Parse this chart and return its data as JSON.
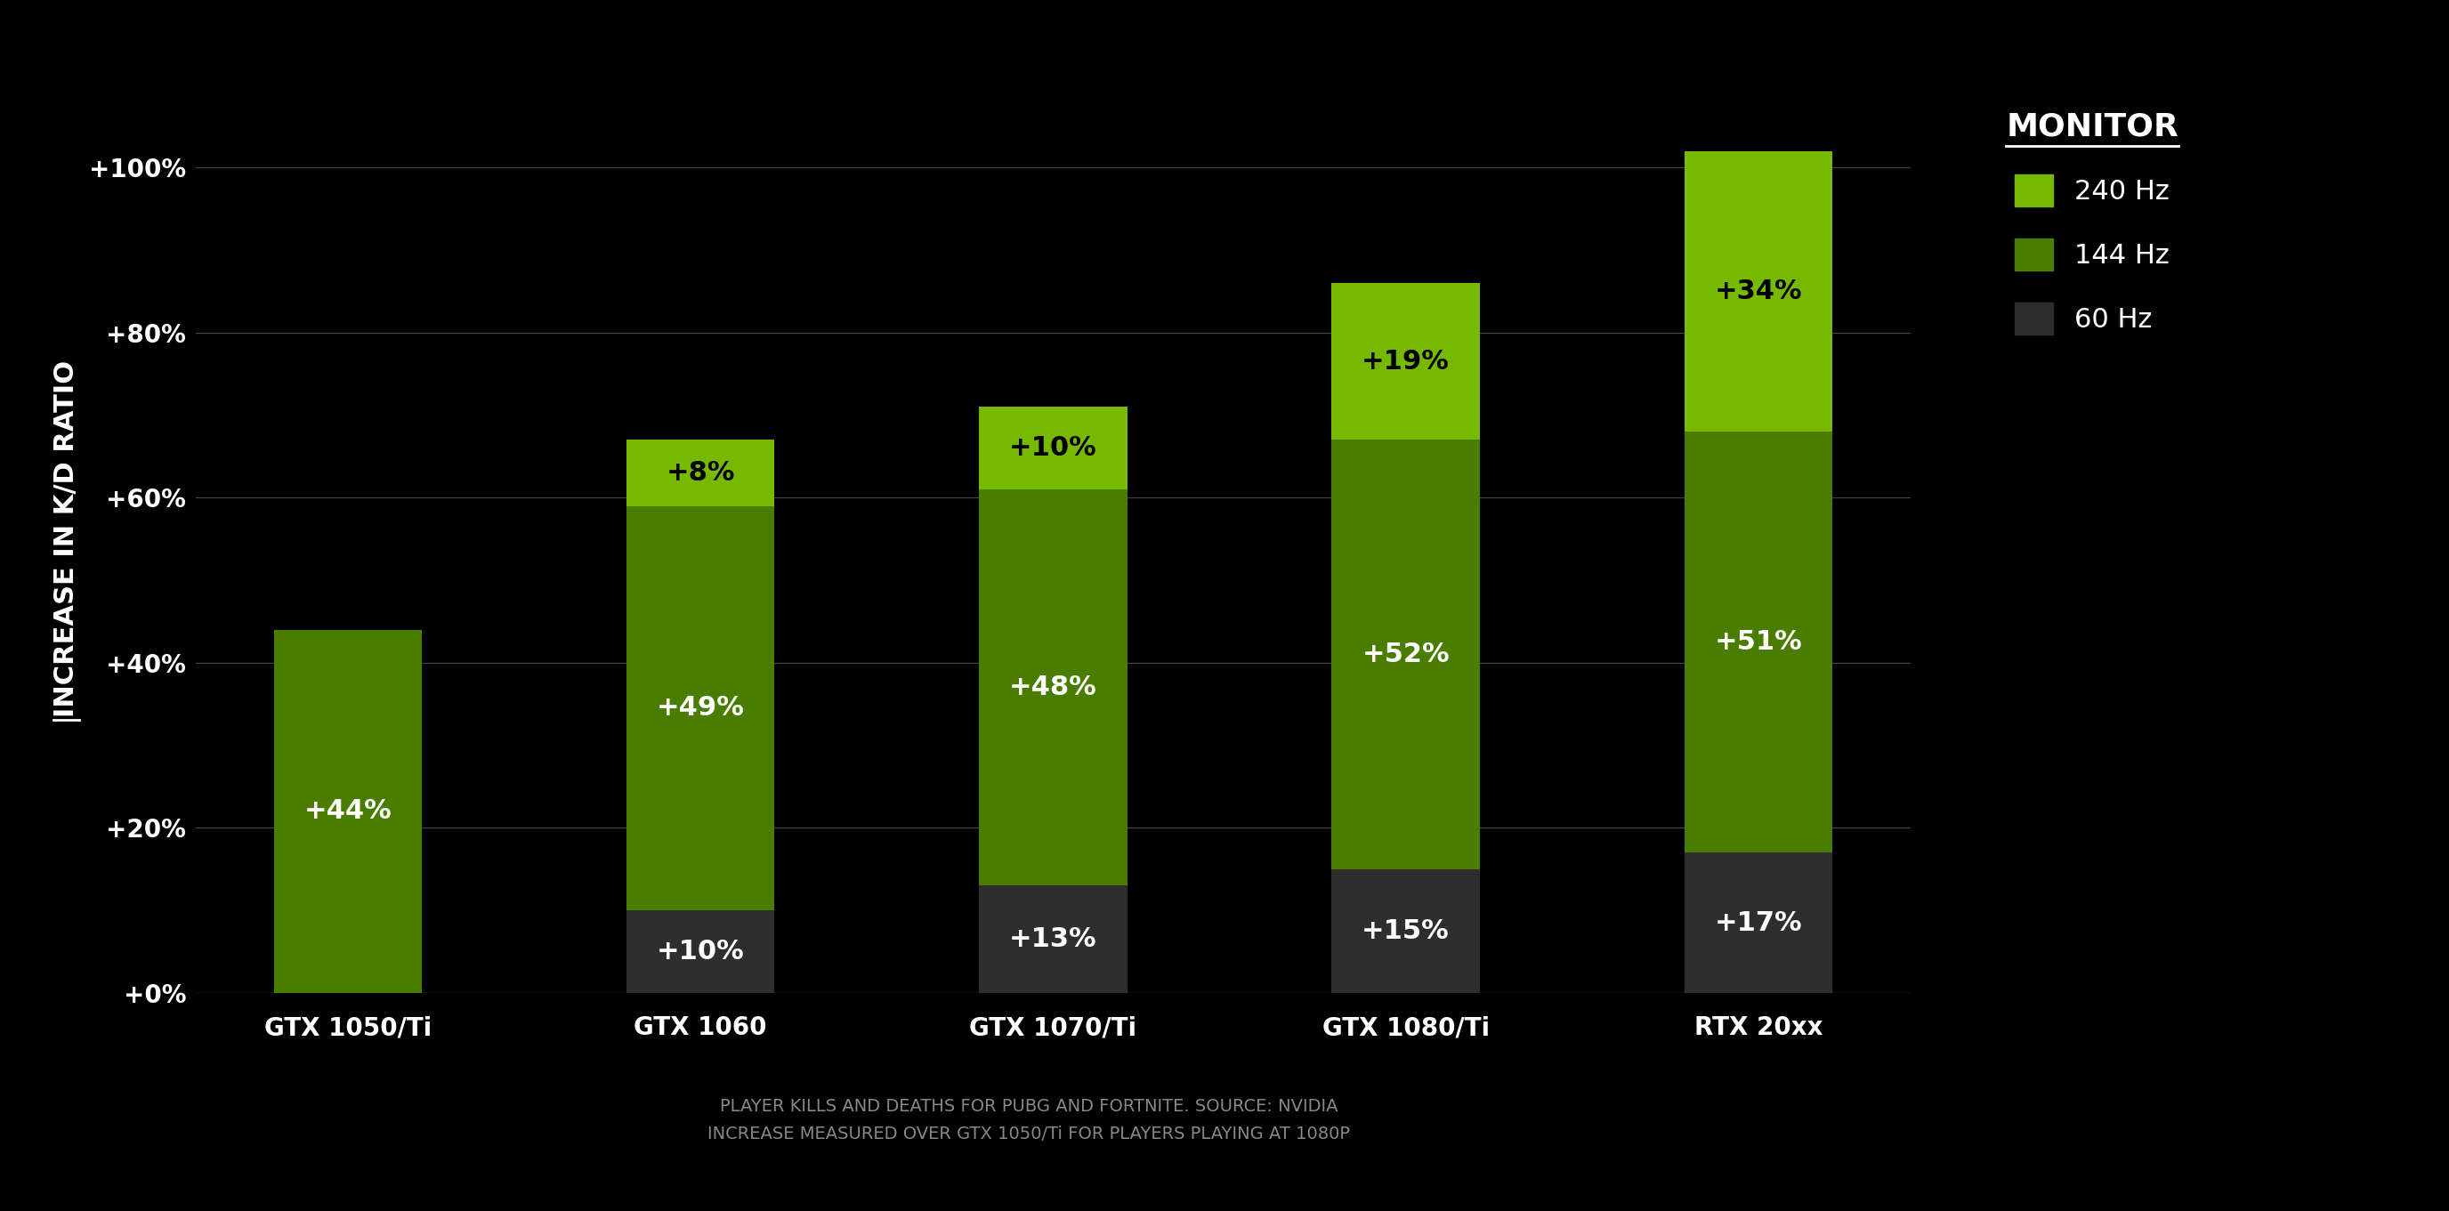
{
  "categories": [
    "GTX 1050/Ti",
    "GTX 1060",
    "GTX 1070/Ti",
    "GTX 1080/Ti",
    "RTX 20xx"
  ],
  "seg_60hz": [
    0,
    10,
    13,
    15,
    17
  ],
  "seg_144hz": [
    44,
    49,
    48,
    52,
    51
  ],
  "seg_240hz": [
    0,
    8,
    10,
    19,
    34
  ],
  "color_60hz": "#2e2e2e",
  "color_144hz": "#4a7c00",
  "color_240hz": "#76b900",
  "background": "#000000",
  "text_color": "#ffffff",
  "grid_color": "#444444",
  "ylabel": "INCREASE IN K/D RATIO",
  "title_legend": "MONITOR",
  "label_240hz": "240 Hz",
  "label_144hz": "144 Hz",
  "label_60hz": "60 Hz",
  "yticks": [
    0,
    20,
    40,
    60,
    80,
    100
  ],
  "ytick_labels": [
    "+0%",
    "+20%",
    "+40%",
    "+60%",
    "+80%",
    "+100%"
  ],
  "ylim": [
    0,
    110
  ],
  "footnote_line1": "PLAYER KILLS AND DEATHS FOR PUBG AND FORTNITE. SOURCE: NVIDIA",
  "footnote_line2": "INCREASE MEASURED OVER GTX 1050/Ti FOR PLAYERS PLAYING AT 1080P",
  "bar_width": 0.42,
  "annot_fontsize": 22,
  "tick_fontsize": 20,
  "ylabel_fontsize": 22,
  "legend_title_fontsize": 26,
  "legend_fontsize": 22,
  "footnote_fontsize": 14,
  "footnote_color": "#888888"
}
